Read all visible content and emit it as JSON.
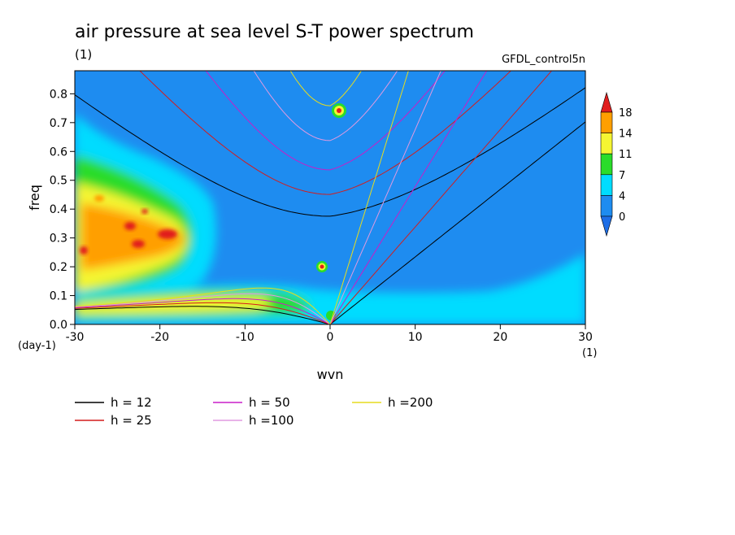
{
  "chart_data": {
    "type": "heatmap",
    "title": "air pressure at sea level S-T power spectrum",
    "units": "(1)",
    "model": "GFDL_control5n",
    "xlabel": "wvn",
    "ylabel": "freq",
    "x_units": "(1)",
    "y_units": "(day-1)",
    "xlim": [
      -30,
      30
    ],
    "ylim": [
      0,
      0.88
    ],
    "x_ticks": [
      -30,
      -20,
      -10,
      0,
      10,
      20,
      30
    ],
    "x_tick_labels": [
      "-30",
      "-20",
      "-10",
      "0",
      "10",
      "20",
      "30"
    ],
    "y_ticks": [
      0.0,
      0.1,
      0.2,
      0.3,
      0.4,
      0.5,
      0.6,
      0.7,
      0.8
    ],
    "y_tick_labels": [
      "0.0",
      "0.1",
      "0.2",
      "0.3",
      "0.4",
      "0.5",
      "0.6",
      "0.7",
      "0.8"
    ],
    "colorbar": {
      "levels": [
        0,
        4,
        7,
        11,
        14,
        18
      ],
      "labels": [
        "0",
        "4",
        "7",
        "11",
        "14",
        "18"
      ],
      "colors": [
        "#1e8cf0",
        "#00dcff",
        "#2adc2a",
        "#f5f532",
        "#ff9f00",
        "#e11e1e"
      ]
    },
    "dispersion_curves": [
      {
        "name": "h = 12",
        "h": 12,
        "color": "#000000"
      },
      {
        "name": "h = 25",
        "h": 25,
        "color": "#d41c1c"
      },
      {
        "name": "h = 50",
        "h": 50,
        "color": "#c81ec8"
      },
      {
        "name": "h =100",
        "h": 100,
        "color": "#e09ae0"
      },
      {
        "name": "h =200",
        "h": 200,
        "color": "#e6dc1e"
      }
    ],
    "grid": false,
    "legend_position": "bottom-left"
  }
}
